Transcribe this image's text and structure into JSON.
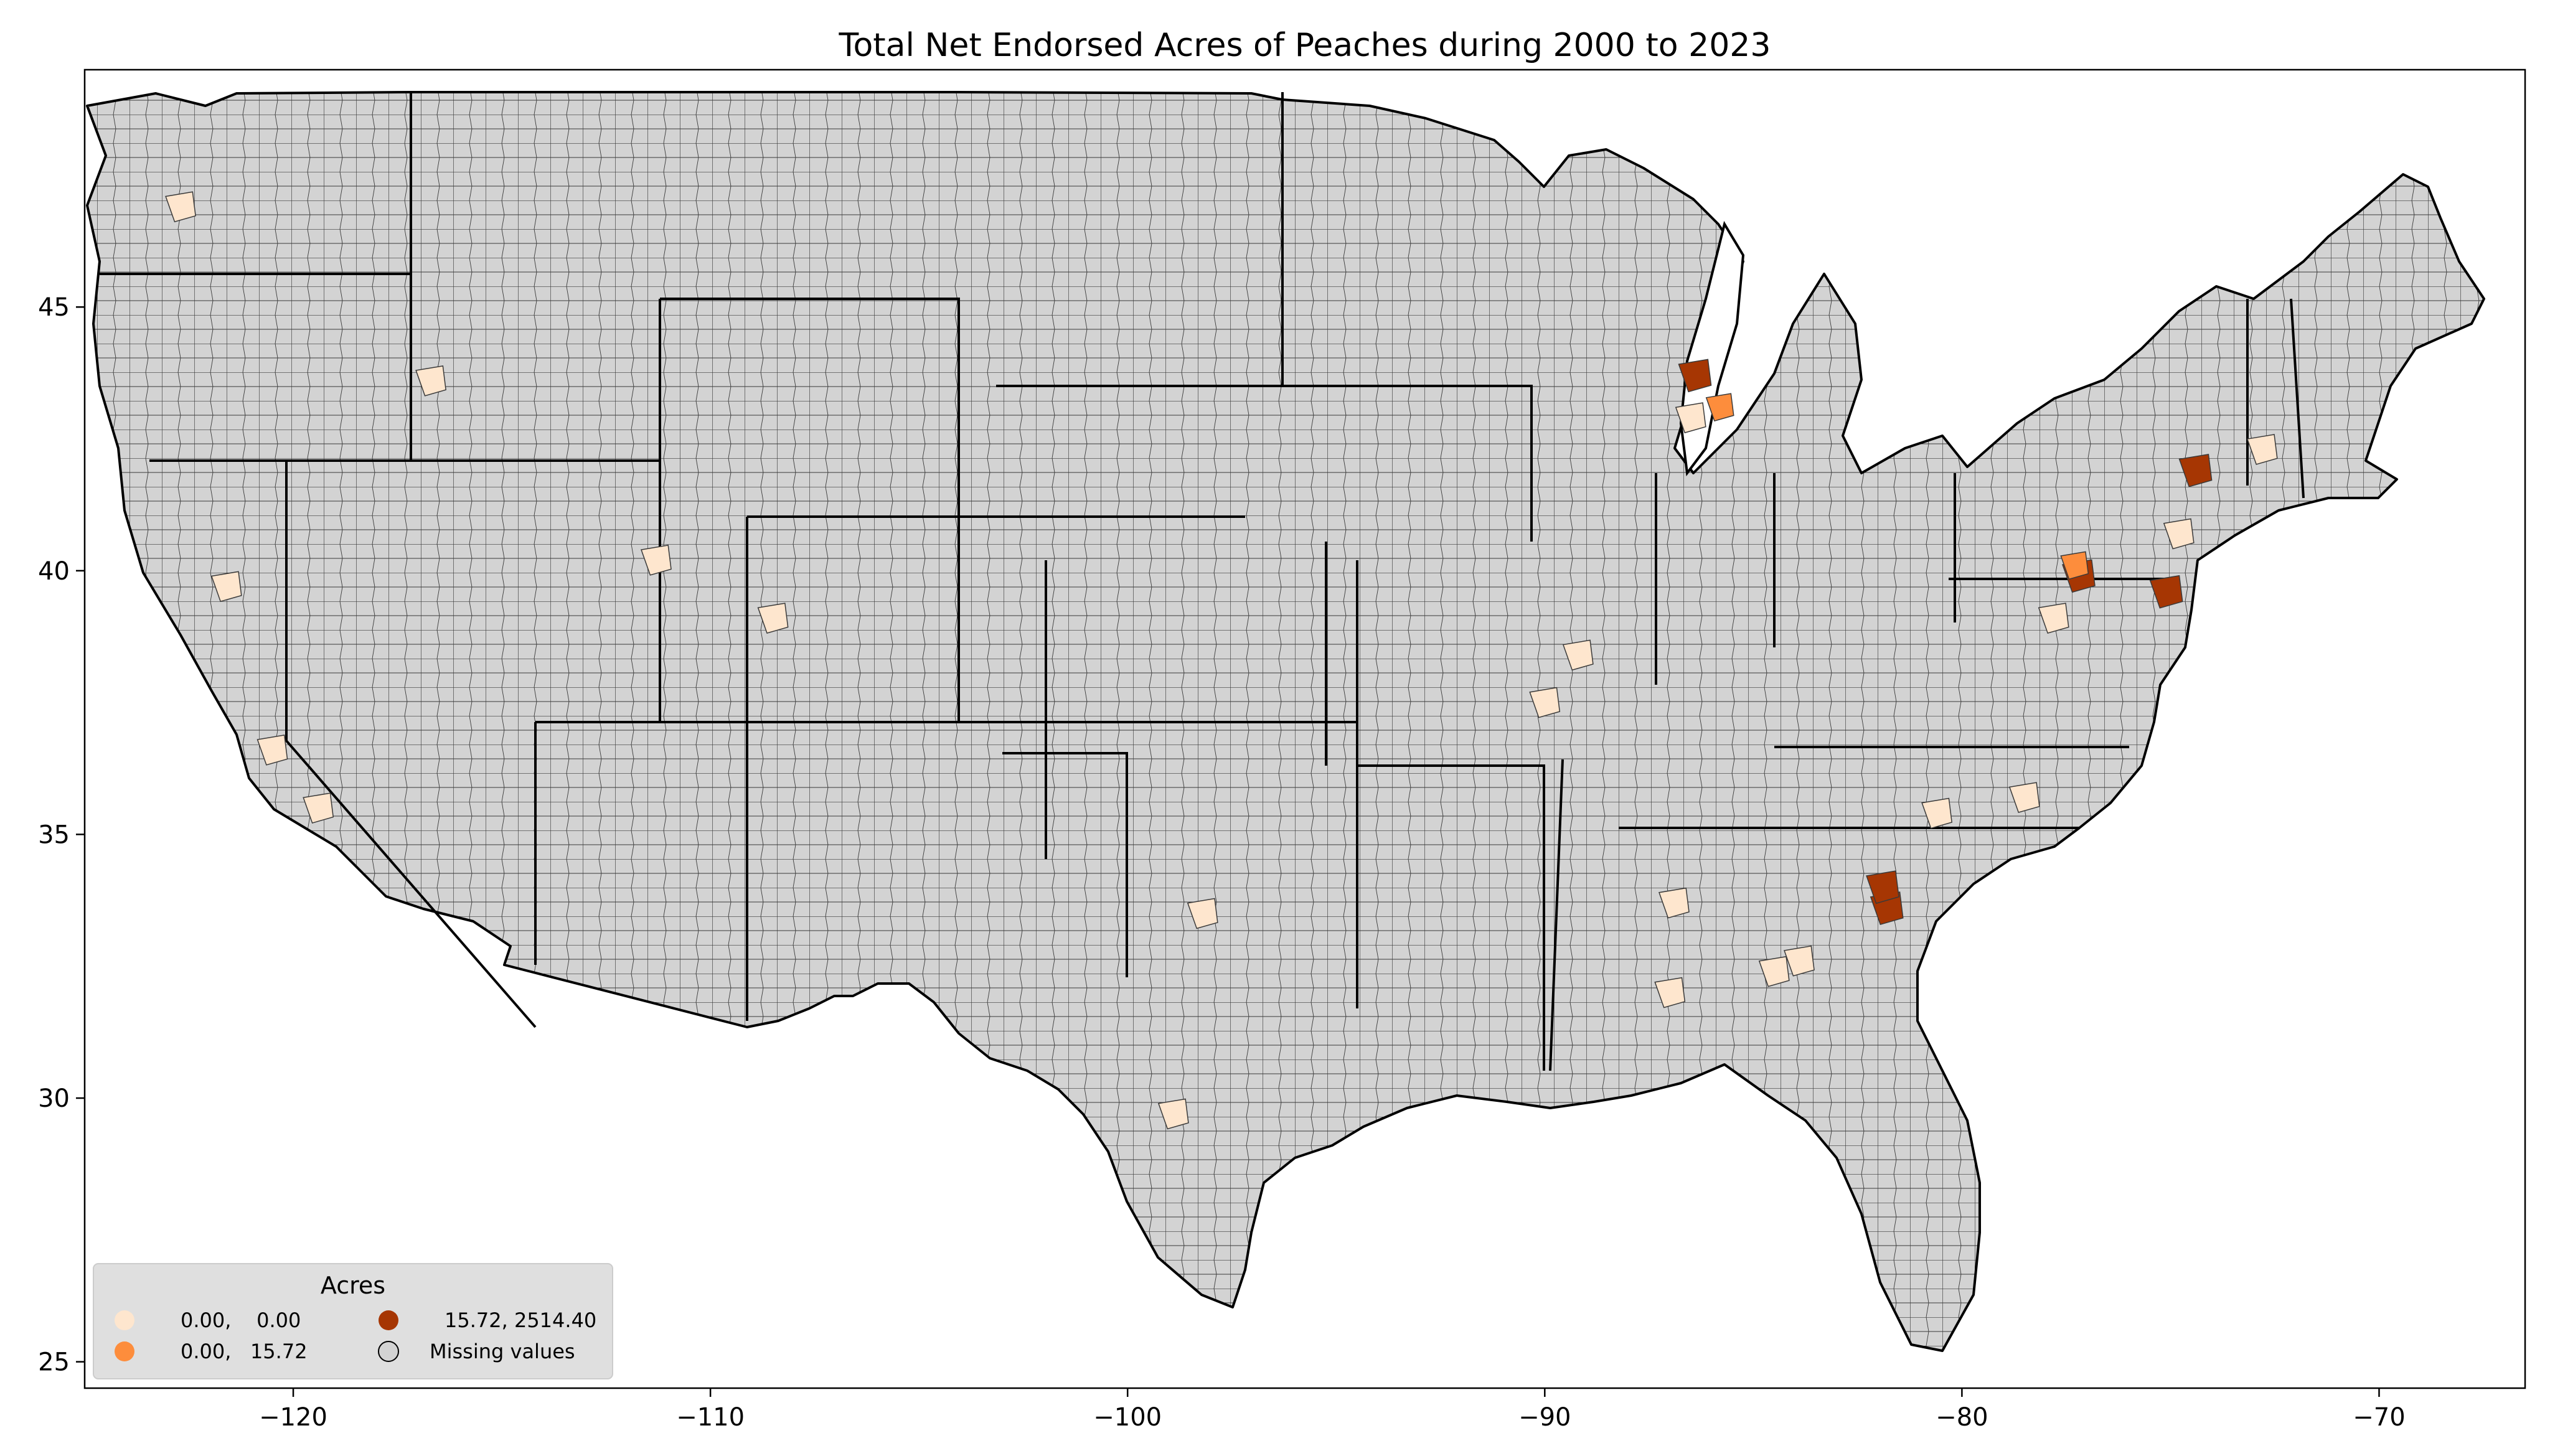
{
  "title": "Total Net Endorsed Acres of Peaches during 2000 to 2023",
  "axes": {
    "x_ticks": [
      "−120",
      "−110",
      "−100",
      "−90",
      "−80",
      "−70"
    ],
    "y_ticks": [
      "45",
      "40",
      "35",
      "30",
      "25"
    ]
  },
  "legend": {
    "title": "Acres",
    "items": [
      {
        "label": "0.00,    0.00",
        "color": "#fee6ce"
      },
      {
        "label": "0.00,   15.72",
        "color": "#fd8d3c"
      },
      {
        "label": "15.72, 2514.40",
        "color": "#a63603"
      },
      {
        "label": "Missing values",
        "color": "#d3d3d3"
      }
    ]
  },
  "colors": {
    "missing": "#d3d3d3",
    "low": "#fee6ce",
    "mid": "#fd8d3c",
    "high": "#a63603"
  },
  "chart_data": {
    "type": "choropleth",
    "title": "Total Net Endorsed Acres of Peaches during 2000 to 2023",
    "xlim": [
      -125,
      -66.5
    ],
    "ylim": [
      24.5,
      49.5
    ],
    "legend_placement": "lower-left",
    "classes": [
      {
        "label": "0.00,    0.00",
        "range": [
          0.0,
          0.0
        ]
      },
      {
        "label": "0.00,   15.72",
        "range": [
          0.0,
          15.72
        ]
      },
      {
        "label": "15.72, 2514.40",
        "range": [
          15.72,
          2514.4
        ]
      },
      {
        "label": "Missing values",
        "range": null
      }
    ],
    "highlighted_regions": [
      {
        "lon": -122.7,
        "lat": 46.9,
        "class": "low"
      },
      {
        "lon": -121.6,
        "lat": 39.7,
        "class": "low"
      },
      {
        "lon": -120.5,
        "lat": 36.6,
        "class": "low"
      },
      {
        "lon": -119.4,
        "lat": 35.5,
        "class": "low"
      },
      {
        "lon": -111.3,
        "lat": 40.2,
        "class": "low"
      },
      {
        "lon": -108.5,
        "lat": 39.1,
        "class": "low"
      },
      {
        "lon": -116.7,
        "lat": 43.6,
        "class": "low"
      },
      {
        "lon": -86.5,
        "lat": 42.9,
        "class": "low"
      },
      {
        "lon": -85.8,
        "lat": 43.1,
        "class": "mid"
      },
      {
        "lon": -86.4,
        "lat": 43.7,
        "class": "high"
      },
      {
        "lon": -77.2,
        "lat": 39.9,
        "class": "high"
      },
      {
        "lon": -77.3,
        "lat": 40.1,
        "class": "mid"
      },
      {
        "lon": -75.1,
        "lat": 39.6,
        "class": "high"
      },
      {
        "lon": -74.4,
        "lat": 41.9,
        "class": "high"
      },
      {
        "lon": -81.8,
        "lat": 33.6,
        "class": "high"
      },
      {
        "lon": -81.9,
        "lat": 34.0,
        "class": "high"
      },
      {
        "lon": -83.9,
        "lat": 32.6,
        "class": "low"
      },
      {
        "lon": -84.5,
        "lat": 32.4,
        "class": "low"
      },
      {
        "lon": -86.9,
        "lat": 33.7,
        "class": "low"
      },
      {
        "lon": -87.0,
        "lat": 32.0,
        "class": "low"
      },
      {
        "lon": -78.5,
        "lat": 35.7,
        "class": "low"
      },
      {
        "lon": -80.6,
        "lat": 35.4,
        "class": "low"
      },
      {
        "lon": -98.2,
        "lat": 33.5,
        "class": "low"
      },
      {
        "lon": -98.9,
        "lat": 29.7,
        "class": "low"
      },
      {
        "lon": -72.8,
        "lat": 42.3,
        "class": "low"
      },
      {
        "lon": -74.8,
        "lat": 40.7,
        "class": "low"
      },
      {
        "lon": -77.8,
        "lat": 39.1,
        "class": "low"
      },
      {
        "lon": -89.2,
        "lat": 38.4,
        "class": "low"
      },
      {
        "lon": -90.0,
        "lat": 37.5,
        "class": "low"
      }
    ]
  }
}
